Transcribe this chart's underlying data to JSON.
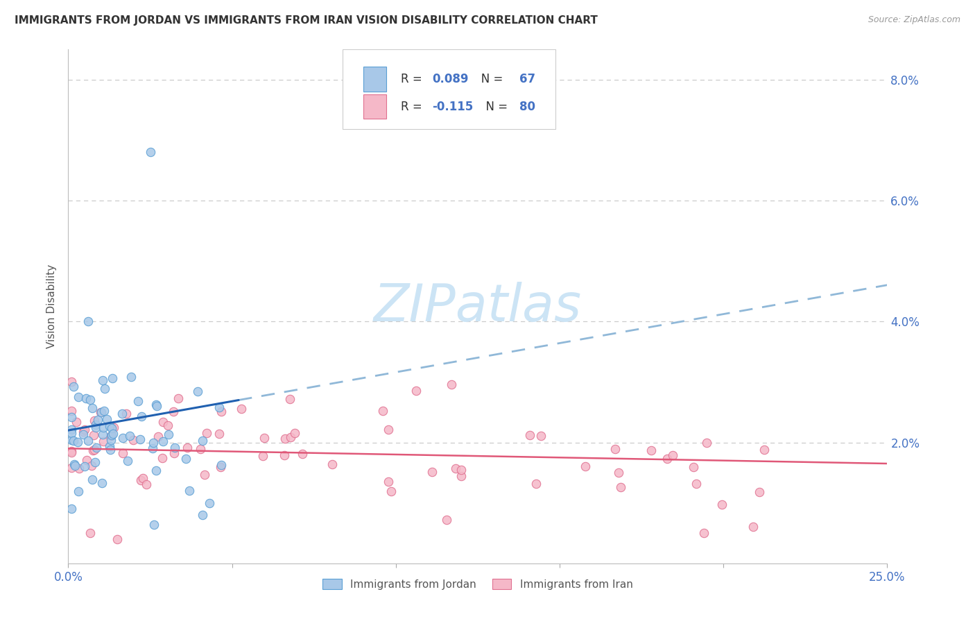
{
  "title": "IMMIGRANTS FROM JORDAN VS IMMIGRANTS FROM IRAN VISION DISABILITY CORRELATION CHART",
  "source": "Source: ZipAtlas.com",
  "ylabel": "Vision Disability",
  "xlim": [
    0.0,
    0.25
  ],
  "ylim": [
    0.0,
    0.085
  ],
  "yticks": [
    0.0,
    0.02,
    0.04,
    0.06,
    0.08
  ],
  "xticks": [
    0.0,
    0.05,
    0.1,
    0.15,
    0.2,
    0.25
  ],
  "xtick_labels": [
    "0.0%",
    "",
    "",
    "",
    "",
    "25.0%"
  ],
  "ytick_labels_right": [
    "",
    "2.0%",
    "4.0%",
    "6.0%",
    "8.0%"
  ],
  "jordan_color": "#a8c8e8",
  "jordan_edge_color": "#5a9fd4",
  "iran_color": "#f5b8c8",
  "iran_edge_color": "#e07090",
  "jordan_line_color": "#2060b0",
  "jordan_dash_color": "#90b8d8",
  "iran_line_color": "#e05878",
  "jordan_r": 0.089,
  "jordan_n": 67,
  "iran_r": -0.115,
  "iran_n": 80,
  "r_text_color": "#4472c4",
  "n_text_color": "#4472c4",
  "watermark_color": "#cce4f5",
  "grid_color": "#cccccc",
  "background_color": "#ffffff",
  "tick_color": "#4472c4",
  "legend_box_color": "#e8e8f0"
}
